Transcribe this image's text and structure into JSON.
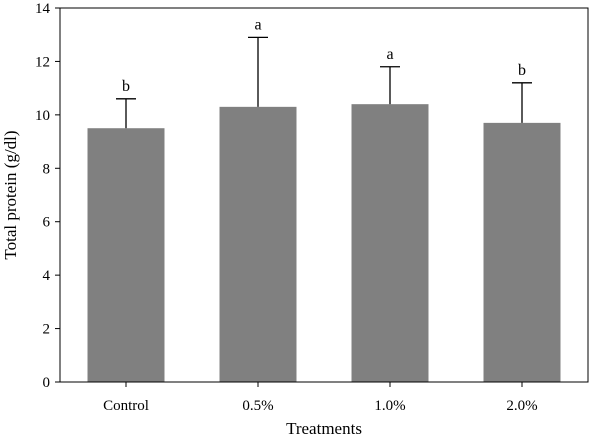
{
  "chart_data": {
    "type": "bar",
    "title": "",
    "xlabel": "Treatments",
    "ylabel": "Total protein (g/dl)",
    "categories": [
      "Control",
      "0.5%",
      "1.0%",
      "2.0%"
    ],
    "values": [
      9.5,
      10.3,
      10.4,
      9.7
    ],
    "error_upper": [
      10.6,
      12.9,
      11.8,
      11.2
    ],
    "significance": [
      "b",
      "a",
      "a",
      "b"
    ],
    "ylim": [
      0,
      14
    ],
    "yticks": [
      0,
      2,
      4,
      6,
      8,
      10,
      12,
      14
    ],
    "grid": false,
    "legend": "none",
    "bar_color": "#808080"
  }
}
